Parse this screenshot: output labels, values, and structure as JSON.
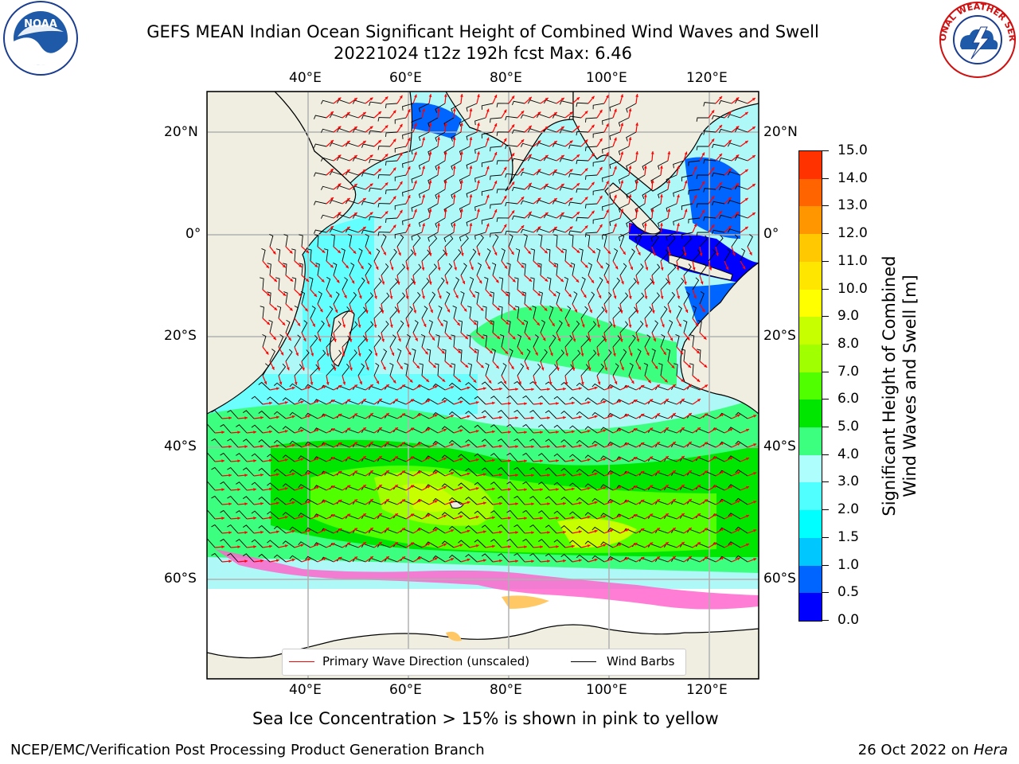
{
  "title": {
    "line1": "GEFS MEAN Indian Ocean Significant Height of Combined Wind Waves and Swell",
    "line2": "20221024 t12z 192h fcst   Max: 6.46"
  },
  "map": {
    "lon_labels_top": [
      "40°E",
      "60°E",
      "80°E",
      "100°E",
      "120°E"
    ],
    "lon_labels_bottom": [
      "40°E",
      "60°E",
      "80°E",
      "100°E",
      "120°E"
    ],
    "lat_labels_left": [
      "20°N",
      "0°",
      "20°S",
      "40°S",
      "60°S"
    ],
    "lat_labels_right": [
      "20°N",
      "0°",
      "20°S",
      "40°S",
      "60°S"
    ],
    "colors": {
      "land": "#efeee0",
      "background_ocean": "#aff8f8",
      "grid": "#b0b0b0",
      "barb": "#000000",
      "arrow": "#ff0000"
    }
  },
  "legend": {
    "wave_direction": "Primary Wave Direction (unscaled)",
    "wind_barbs": "Wind Barbs",
    "wave_color": "#ff0000",
    "barb_color": "#000000"
  },
  "colorbar": {
    "title_line1": "Significant Height of Combined",
    "title_line2": "Wind Waves and Swell [m]",
    "ticks": [
      "0.0",
      "0.5",
      "1.0",
      "1.5",
      "2.0",
      "3.0",
      "4.0",
      "5.0",
      "6.0",
      "7.0",
      "8.0",
      "9.0",
      "10.0",
      "11.0",
      "12.0",
      "13.0",
      "14.0",
      "15.0"
    ],
    "colors": [
      "#0000ff",
      "#0064ff",
      "#00c8ff",
      "#00ffff",
      "#50ffff",
      "#aefefe",
      "#3cff80",
      "#00e600",
      "#50ff00",
      "#a0ff00",
      "#c8ff00",
      "#ffff00",
      "#ffe600",
      "#ffc800",
      "#ff9600",
      "#ff6400",
      "#ff3200"
    ]
  },
  "footer": {
    "ice_note": "Sea Ice Concentration > 15% is shown in pink to yellow",
    "branch": "NCEP/EMC/Verification Post Processing Product Generation Branch",
    "date_prefix": "26 Oct 2022 on ",
    "host": "Hera"
  },
  "logos": {
    "noaa_text": "NOAA",
    "nws_text": "NATIONAL WEATHER SERVICE"
  }
}
